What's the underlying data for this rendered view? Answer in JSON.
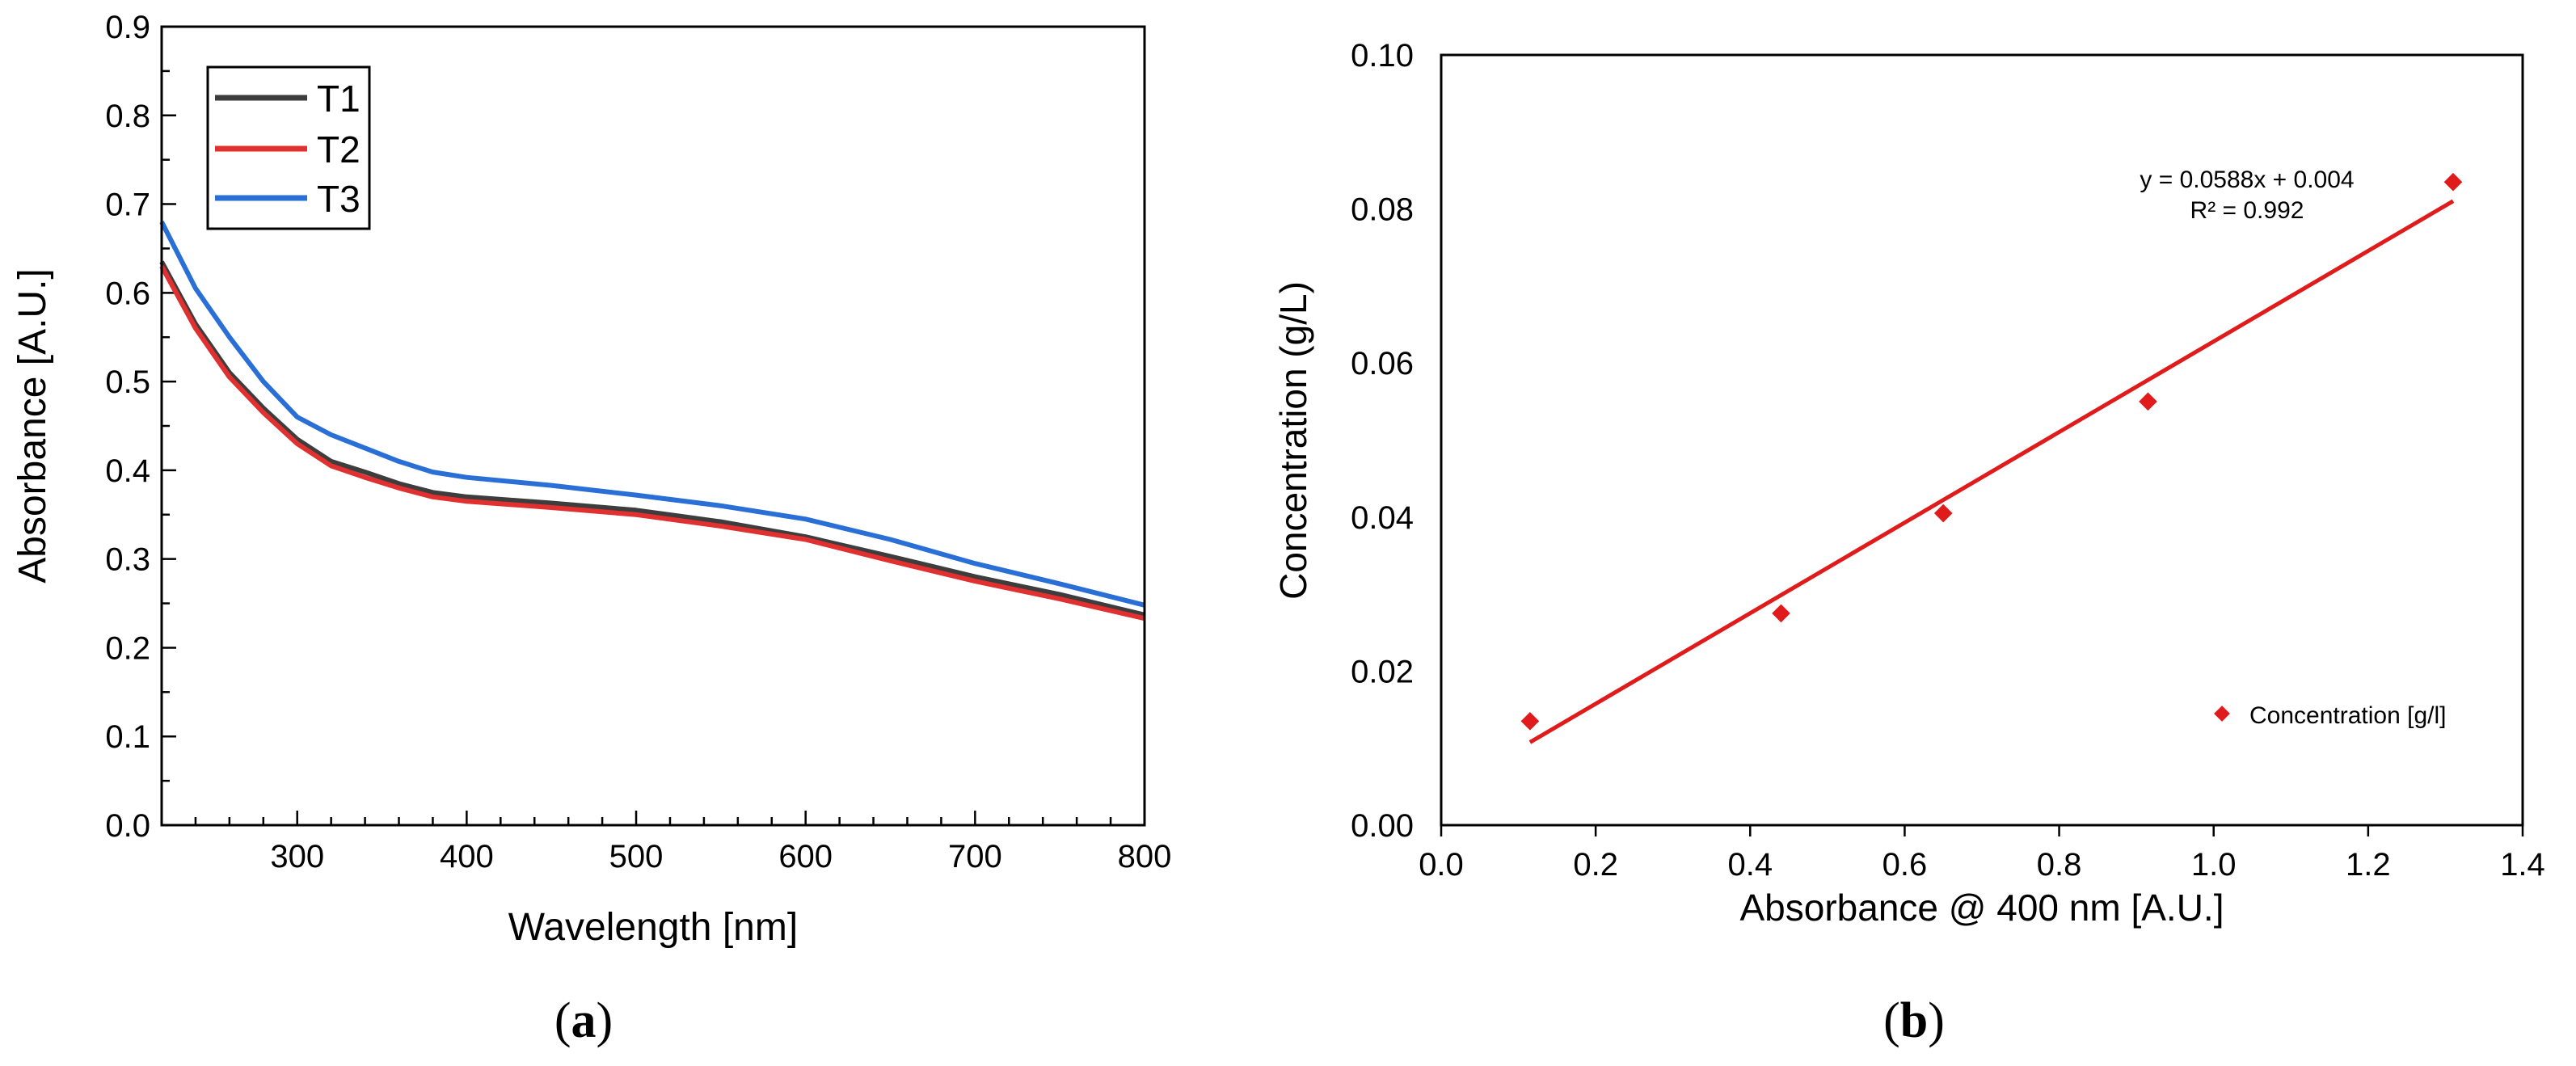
{
  "chart_data": [
    {
      "type": "line",
      "panel_label": "(a)",
      "panel_letter": "a",
      "title": "",
      "xlabel": "Wavelength [nm]",
      "ylabel": "Absorbance [A.U.]",
      "xlim": [
        220,
        800
      ],
      "ylim": [
        0,
        0.9
      ],
      "xticks": [
        "300",
        "400",
        "500",
        "600",
        "700",
        "800"
      ],
      "xtick_values": [
        300,
        400,
        500,
        600,
        700,
        800
      ],
      "yticks": [
        "0.0",
        "0.1",
        "0.2",
        "0.3",
        "0.4",
        "0.5",
        "0.6",
        "0.7",
        "0.8",
        "0.9"
      ],
      "ytick_values": [
        0,
        0.1,
        0.2,
        0.3,
        0.4,
        0.5,
        0.6,
        0.7,
        0.8,
        0.9
      ],
      "legend_position": "top-left",
      "x": [
        220,
        240,
        260,
        280,
        300,
        320,
        340,
        360,
        380,
        400,
        450,
        500,
        550,
        600,
        650,
        700,
        750,
        800
      ],
      "series": [
        {
          "name": "T1",
          "color": "#3d3d3d",
          "values": [
            0.635,
            0.565,
            0.51,
            0.47,
            0.435,
            0.41,
            0.398,
            0.385,
            0.375,
            0.37,
            0.363,
            0.355,
            0.342,
            0.325,
            0.303,
            0.28,
            0.26,
            0.237
          ]
        },
        {
          "name": "T2",
          "color": "#e03030",
          "values": [
            0.63,
            0.56,
            0.505,
            0.465,
            0.43,
            0.405,
            0.392,
            0.38,
            0.37,
            0.365,
            0.358,
            0.35,
            0.337,
            0.322,
            0.298,
            0.275,
            0.255,
            0.233
          ]
        },
        {
          "name": "T3",
          "color": "#2a6fd6",
          "values": [
            0.68,
            0.605,
            0.55,
            0.5,
            0.46,
            0.44,
            0.425,
            0.41,
            0.398,
            0.392,
            0.383,
            0.372,
            0.36,
            0.345,
            0.322,
            0.295,
            0.272,
            0.248
          ]
        }
      ]
    },
    {
      "type": "scatter",
      "panel_label": "(b)",
      "panel_letter": "b",
      "title": "",
      "xlabel": "Absorbance @ 400 nm [A.U.]",
      "ylabel": "Concentration (g/L)",
      "xlim": [
        0,
        1.4
      ],
      "ylim": [
        0,
        0.1
      ],
      "xticks": [
        "0.0",
        "0.2",
        "0.4",
        "0.6",
        "0.8",
        "1.0",
        "1.2",
        "1.4"
      ],
      "xtick_values": [
        0,
        0.2,
        0.4,
        0.6,
        0.8,
        1.0,
        1.2,
        1.4
      ],
      "yticks": [
        "0.00",
        "0.02",
        "0.04",
        "0.06",
        "0.08",
        "0.10"
      ],
      "ytick_values": [
        0,
        0.02,
        0.04,
        0.06,
        0.08,
        0.1
      ],
      "legend_position": "bottom-right",
      "series": [
        {
          "name": "Concentration [g/l]",
          "color": "#e01b1b",
          "x": [
            0.115,
            0.44,
            0.65,
            0.915,
            1.31
          ],
          "y": [
            0.0135,
            0.0275,
            0.0405,
            0.055,
            0.0835
          ]
        }
      ],
      "trendline": {
        "slope": 0.0588,
        "intercept": 0.004,
        "x_range": [
          0.115,
          1.31
        ],
        "color": "#e01b1b",
        "equation_label": "y = 0.0588x + 0.004",
        "r2_label": "R² = 0.992"
      }
    }
  ]
}
